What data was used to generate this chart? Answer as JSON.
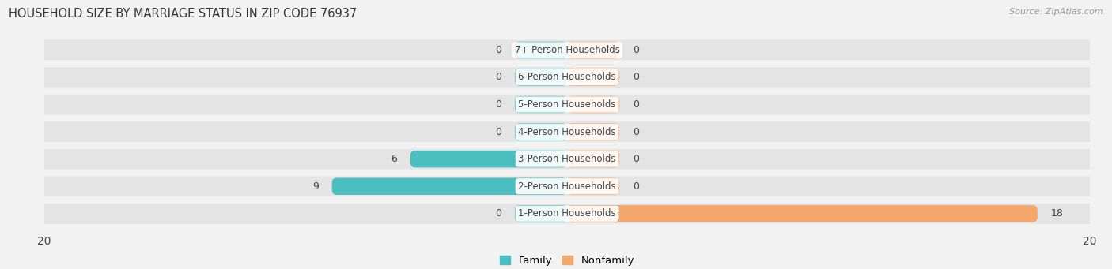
{
  "title": "HOUSEHOLD SIZE BY MARRIAGE STATUS IN ZIP CODE 76937",
  "source": "Source: ZipAtlas.com",
  "categories": [
    "7+ Person Households",
    "6-Person Households",
    "5-Person Households",
    "4-Person Households",
    "3-Person Households",
    "2-Person Households",
    "1-Person Households"
  ],
  "family_values": [
    0,
    0,
    0,
    0,
    6,
    9,
    0
  ],
  "nonfamily_values": [
    0,
    0,
    0,
    0,
    0,
    0,
    18
  ],
  "family_color": "#4BBFC0",
  "nonfamily_color": "#F5A86B",
  "stub_size": 2.0,
  "xlim": 20,
  "background_color": "#f2f2f2",
  "row_bg_color": "#e4e4e4",
  "bar_height": 0.62,
  "label_color": "#444444",
  "title_color": "#333333",
  "source_color": "#999999",
  "legend_family": "Family",
  "legend_nonfamily": "Nonfamily"
}
